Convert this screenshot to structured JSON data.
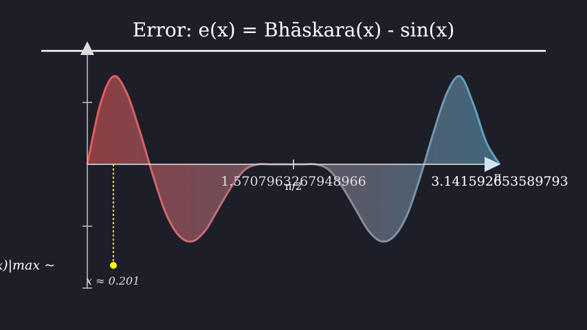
{
  "chart_data": {
    "type": "area",
    "title": "Error: e(x) = Bhāskara(x) - sin(x)",
    "xlabel": "",
    "ylabel": "",
    "xlim": [
      0,
      3.14159
    ],
    "ylim": [
      -0.002,
      0.002
    ],
    "x_tick_labels": [
      {
        "value": 1.5708,
        "label": "1.5707963267948966",
        "overlay": "π/2"
      },
      {
        "value": 3.14159,
        "label": "3.141592653589793",
        "overlay": "π"
      }
    ],
    "series": [
      {
        "x": [
          0,
          0.1,
          0.2,
          0.3,
          0.4,
          0.5,
          0.6,
          0.7,
          0.8,
          0.9,
          1.0,
          1.1,
          1.2,
          1.3,
          1.4,
          1.5,
          1.57,
          1.64,
          1.74,
          1.84,
          1.94,
          2.04,
          2.14,
          2.24,
          2.34,
          2.44,
          2.54,
          2.64,
          2.74,
          2.84,
          2.94,
          3.04,
          3.14159
        ],
        "values": [
          0,
          0.0011,
          0.0016,
          0.0013,
          0.0006,
          -0.0002,
          -0.0009,
          -0.0013,
          -0.0014,
          -0.0012,
          -0.0008,
          -0.0004,
          -0.0001,
          0.0,
          0.0,
          0.0,
          0.0,
          0.0,
          0.0,
          -0.0001,
          -0.0004,
          -0.0008,
          -0.0012,
          -0.0014,
          -0.0013,
          -0.0009,
          -0.0002,
          0.0006,
          0.0013,
          0.0016,
          0.0011,
          0.0004,
          0
        ]
      }
    ],
    "annotations": [
      {
        "x": 0.201,
        "label": "x ≈ 0.201"
      },
      {
        "label": "|e(x)|max ~"
      }
    ],
    "colors": {
      "start": "#e85a5a",
      "end": "#5aa3c2",
      "axis": "#c8c8c8",
      "marker": "#ffff00"
    }
  }
}
